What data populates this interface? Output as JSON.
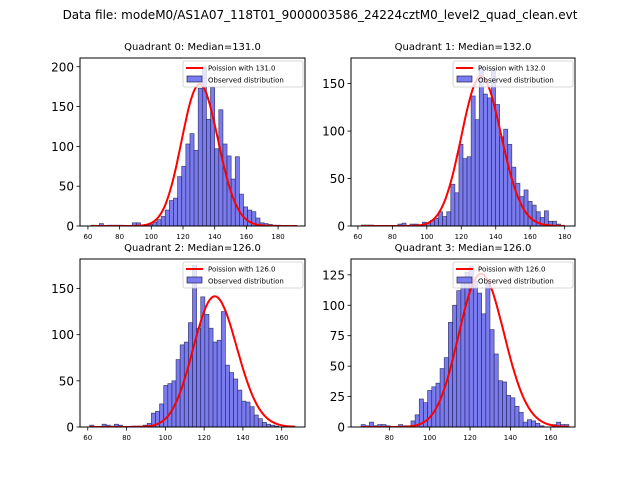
{
  "figure": {
    "suptitle": "Data file: modeM0/AS1A07_118T01_9000003586_24224cztM0_level2_quad_clean.evt"
  },
  "chart_data": [
    {
      "type": "bar",
      "title": "Quadrant 0: Median=131.0",
      "xlabel": "",
      "ylabel": "",
      "xlim": [
        55,
        197
      ],
      "ylim": [
        0,
        211
      ],
      "xticks": [
        60,
        80,
        100,
        120,
        140,
        160,
        180
      ],
      "yticks": [
        0,
        50,
        100,
        150,
        200
      ],
      "bin_start": 62,
      "bin_width": 2.6,
      "values": [
        1,
        0,
        3,
        0,
        1,
        1,
        1,
        1,
        0,
        0,
        4,
        4,
        0,
        1,
        2,
        5,
        8,
        12,
        20,
        32,
        35,
        62,
        75,
        103,
        116,
        95,
        173,
        200,
        134,
        174,
        97,
        146,
        103,
        88,
        59,
        87,
        40,
        24,
        20,
        18,
        10,
        4,
        3,
        2,
        1,
        1,
        0,
        0,
        0,
        0
      ],
      "poisson_lambda": 131.0,
      "legend": [
        "Poission with 131.0",
        "Observed distribution"
      ],
      "legend_position": "upper right",
      "grid": false
    },
    {
      "type": "bar",
      "title": "Quadrant 1: Median=132.0",
      "xlabel": "",
      "ylabel": "",
      "xlim": [
        56,
        186
      ],
      "ylim": [
        0,
        177
      ],
      "xticks": [
        60,
        80,
        100,
        120,
        140,
        160,
        180
      ],
      "yticks": [
        0,
        50,
        100,
        150
      ],
      "bin_start": 62,
      "bin_width": 2.36,
      "values": [
        1,
        1,
        1,
        0,
        0,
        0,
        0,
        0,
        0,
        2,
        3,
        0,
        2,
        2,
        1,
        4,
        3,
        6,
        8,
        15,
        10,
        15,
        44,
        35,
        86,
        71,
        73,
        137,
        112,
        167,
        139,
        135,
        166,
        128,
        94,
        102,
        86,
        62,
        45,
        31,
        38,
        26,
        22,
        15,
        9,
        16,
        5,
        5,
        2,
        0
      ],
      "poisson_lambda": 132.0,
      "legend": [
        "Poission with 132.0",
        "Observed distribution"
      ],
      "legend_position": "upper right",
      "grid": false
    },
    {
      "type": "bar",
      "title": "Quadrant 2: Median=126.0",
      "xlabel": "",
      "ylabel": "",
      "xlim": [
        56,
        172
      ],
      "ylim": [
        0,
        182
      ],
      "xticks": [
        60,
        80,
        100,
        120,
        140,
        160
      ],
      "yticks": [
        0,
        50,
        100,
        150
      ],
      "bin_start": 61,
      "bin_width": 2.12,
      "values": [
        2,
        0,
        0,
        3,
        2,
        1,
        3,
        2,
        0,
        0,
        1,
        1,
        1,
        2,
        4,
        15,
        17,
        25,
        45,
        47,
        50,
        73,
        89,
        92,
        113,
        175,
        107,
        141,
        122,
        107,
        92,
        94,
        125,
        67,
        59,
        52,
        40,
        28,
        27,
        22,
        13,
        9,
        5,
        3,
        2,
        1,
        0,
        0,
        0,
        0
      ],
      "poisson_lambda": 126.0,
      "legend": [
        "Poission with 126.0",
        "Observed distribution"
      ],
      "legend_position": "upper right",
      "grid": false
    },
    {
      "type": "bar",
      "title": "Quadrant 3: Median=126.0",
      "xlabel": "",
      "ylabel": "",
      "xlim": [
        61,
        172
      ],
      "ylim": [
        0,
        138
      ],
      "xticks": [
        80,
        100,
        120,
        140,
        160
      ],
      "yticks": [
        0,
        25,
        50,
        75,
        100,
        125
      ],
      "bin_start": 66,
      "bin_width": 2.06,
      "values": [
        2,
        1,
        4,
        1,
        2,
        2,
        1,
        0,
        0,
        2,
        1,
        1,
        5,
        10,
        23,
        20,
        30,
        33,
        36,
        48,
        57,
        86,
        100,
        112,
        120,
        127,
        132,
        120,
        110,
        93,
        118,
        80,
        60,
        38,
        37,
        26,
        24,
        17,
        12,
        4,
        6,
        5,
        3,
        1,
        0,
        0,
        2,
        4,
        2,
        2
      ],
      "poisson_lambda": 126.0,
      "legend": [
        "Poission with 126.0",
        "Observed distribution"
      ],
      "legend_position": "upper right",
      "grid": false
    }
  ],
  "colors": {
    "bar_fill": "#7b7bf0",
    "bar_edge": "#1f1f4f",
    "poisson_line": "#ff0000"
  }
}
